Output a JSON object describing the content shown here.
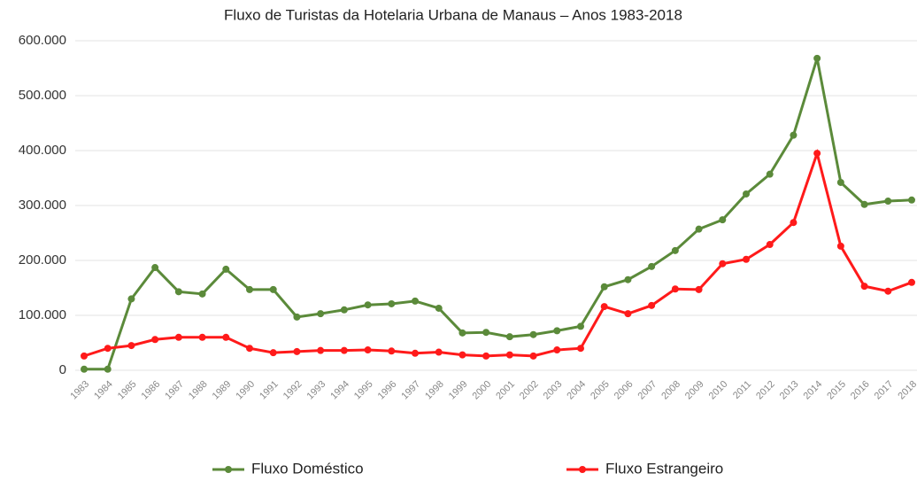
{
  "chart_data": {
    "type": "line",
    "title": "Fluxo de Turistas da Hotelaria Urbana de Manaus – Anos 1983-2018",
    "categories": [
      "1983",
      "1984",
      "1985",
      "1986",
      "1987",
      "1988",
      "1989",
      "1990",
      "1991",
      "1992",
      "1993",
      "1994",
      "1995",
      "1996",
      "1997",
      "1998",
      "1999",
      "2000",
      "2001",
      "2002",
      "2003",
      "2004",
      "2005",
      "2006",
      "2007",
      "2008",
      "2009",
      "2010",
      "2011",
      "2012",
      "2013",
      "2014",
      "2015",
      "2016",
      "2017",
      "2018"
    ],
    "series": [
      {
        "name": "Fluxo Doméstico",
        "color": "#5b8a3a",
        "values": [
          2000,
          2000,
          130000,
          187000,
          143000,
          139000,
          184000,
          147000,
          147000,
          97000,
          103000,
          110000,
          119000,
          121000,
          126000,
          113000,
          68000,
          69000,
          61000,
          65000,
          72000,
          80000,
          152000,
          165000,
          189000,
          218000,
          257000,
          274000,
          321000,
          357000,
          428000,
          568000,
          342000,
          302000,
          308000,
          310000
        ]
      },
      {
        "name": "Fluxo Estrangeiro",
        "color": "#ff1a1a",
        "values": [
          26000,
          40000,
          45000,
          56000,
          60000,
          60000,
          60000,
          40000,
          32000,
          34000,
          36000,
          36000,
          37000,
          35000,
          31000,
          33000,
          28000,
          26000,
          28000,
          26000,
          37000,
          40000,
          116000,
          103000,
          118000,
          148000,
          147000,
          194000,
          202000,
          229000,
          269000,
          395000,
          226000,
          153000,
          144000,
          160000
        ]
      }
    ],
    "ylim": [
      0,
      600000
    ],
    "yticks": [
      0,
      {
        "value": 100000,
        "label": "100.000"
      },
      {
        "value": 200000,
        "label": "200.000"
      },
      {
        "value": 300000,
        "label": "300.000"
      },
      {
        "value": 400000,
        "label": "400.000"
      },
      {
        "value": 500000,
        "label": "500.000"
      },
      {
        "value": 600000,
        "label": "600.000"
      }
    ],
    "grid": true,
    "legend": "bottom"
  }
}
